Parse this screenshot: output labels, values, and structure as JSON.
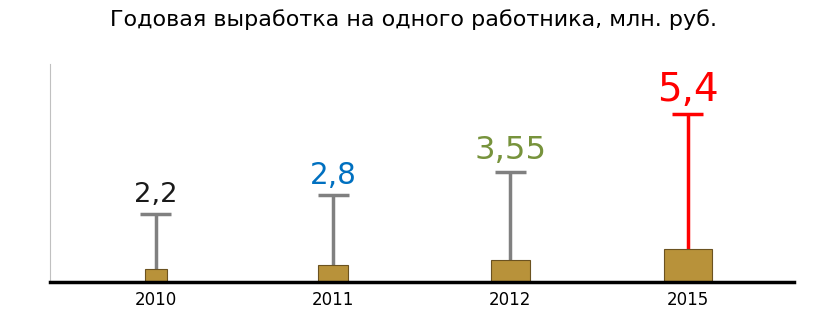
{
  "chart_data": {
    "type": "bar",
    "title": "Годовая выработка на одного работника, млн. руб.",
    "categories": [
      "2010",
      "2011",
      "2012",
      "2015"
    ],
    "values": [
      2.2,
      2.8,
      3.55,
      5.4
    ],
    "value_labels": [
      "2,2",
      "2,8",
      "3,55",
      "5,4"
    ],
    "colors": [
      "#1a1a1a",
      "#0070c0",
      "#77933c",
      "#ff0000"
    ],
    "ylim": [
      0,
      7
    ],
    "yticks": [],
    "data_labels": true,
    "tick_labels": "x",
    "grid": false
  }
}
